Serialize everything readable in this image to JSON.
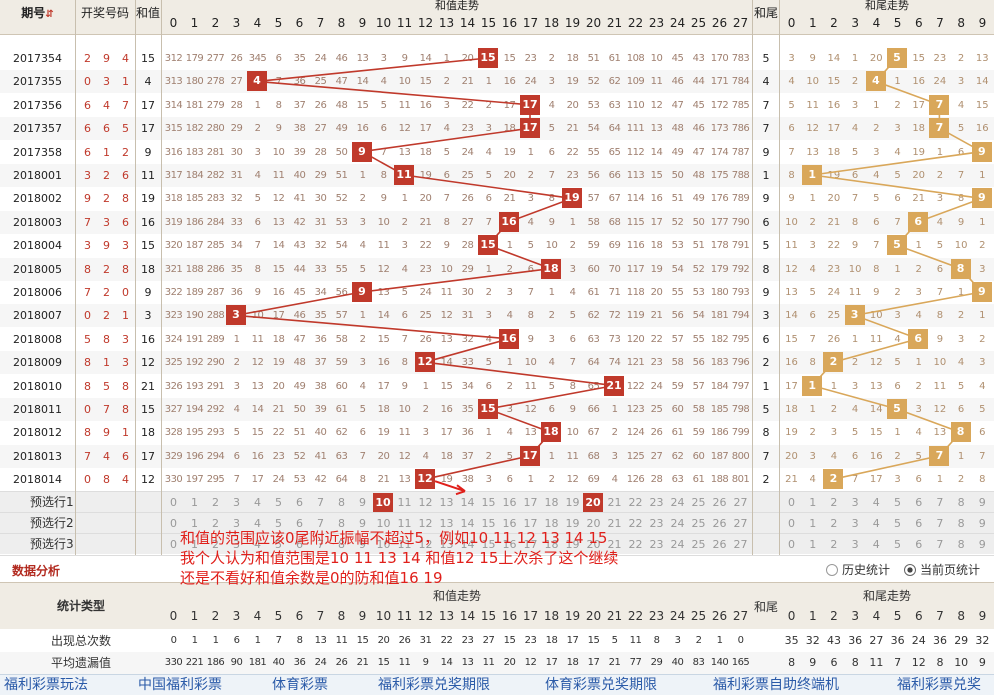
{
  "header": {
    "period": "期号",
    "winning": "开奖号码",
    "sum": "和值",
    "sum_trend": "和值走势",
    "tail": "和尾",
    "tail_trend": "和尾走势",
    "sort_icon": "sort-arrows-icon"
  },
  "sum_cols": [
    "0",
    "1",
    "2",
    "3",
    "4",
    "5",
    "6",
    "7",
    "8",
    "9",
    "10",
    "11",
    "12",
    "13",
    "14",
    "15",
    "16",
    "17",
    "18",
    "19",
    "20",
    "21",
    "22",
    "23",
    "24",
    "25",
    "26",
    "27"
  ],
  "tail_cols": [
    "0",
    "1",
    "2",
    "3",
    "4",
    "5",
    "6",
    "7",
    "8",
    "9"
  ],
  "rows": [
    {
      "period": "2017354",
      "digits": [
        "2",
        "9",
        "4"
      ],
      "sum": "15",
      "tail": "5",
      "g": [
        "312",
        "179",
        "277",
        "26",
        "345",
        "6",
        "35",
        "24",
        "46",
        "13",
        "3",
        "9",
        "14",
        "1",
        "20",
        "",
        "15",
        "23",
        "2",
        "18",
        "51",
        "61",
        "108",
        "10",
        "45",
        "43",
        "170",
        "783"
      ],
      "t": [
        "3",
        "9",
        "14",
        "1",
        "20",
        "",
        "15",
        "23",
        "2",
        "13"
      ]
    },
    {
      "period": "2017355",
      "digits": [
        "0",
        "3",
        "1"
      ],
      "sum": "4",
      "tail": "4",
      "g": [
        "313",
        "180",
        "278",
        "27",
        "",
        "7",
        "36",
        "25",
        "47",
        "14",
        "4",
        "10",
        "15",
        "2",
        "21",
        "1",
        "16",
        "24",
        "3",
        "19",
        "52",
        "62",
        "109",
        "11",
        "46",
        "44",
        "171",
        "784"
      ],
      "t": [
        "4",
        "10",
        "15",
        "2",
        "",
        "1",
        "16",
        "24",
        "3",
        "14"
      ]
    },
    {
      "period": "2017356",
      "digits": [
        "6",
        "4",
        "7"
      ],
      "sum": "17",
      "tail": "7",
      "g": [
        "314",
        "181",
        "279",
        "28",
        "1",
        "8",
        "37",
        "26",
        "48",
        "15",
        "5",
        "11",
        "16",
        "3",
        "22",
        "2",
        "17",
        "",
        "4",
        "20",
        "53",
        "63",
        "110",
        "12",
        "47",
        "45",
        "172",
        "785"
      ],
      "t": [
        "5",
        "11",
        "16",
        "3",
        "1",
        "2",
        "17",
        "",
        "4",
        "15"
      ]
    },
    {
      "period": "2017357",
      "digits": [
        "6",
        "6",
        "5"
      ],
      "sum": "17",
      "tail": "7",
      "g": [
        "315",
        "182",
        "280",
        "29",
        "2",
        "9",
        "38",
        "27",
        "49",
        "16",
        "6",
        "12",
        "17",
        "4",
        "23",
        "3",
        "18",
        "",
        "5",
        "21",
        "54",
        "64",
        "111",
        "13",
        "48",
        "46",
        "173",
        "786"
      ],
      "t": [
        "6",
        "12",
        "17",
        "4",
        "2",
        "3",
        "18",
        "",
        "5",
        "16"
      ]
    },
    {
      "period": "2017358",
      "digits": [
        "6",
        "1",
        "2"
      ],
      "sum": "9",
      "tail": "9",
      "g": [
        "316",
        "183",
        "281",
        "30",
        "3",
        "10",
        "39",
        "28",
        "50",
        "",
        "7",
        "13",
        "18",
        "5",
        "24",
        "4",
        "19",
        "1",
        "6",
        "22",
        "55",
        "65",
        "112",
        "14",
        "49",
        "47",
        "174",
        "787"
      ],
      "t": [
        "7",
        "13",
        "18",
        "5",
        "3",
        "4",
        "19",
        "1",
        "6",
        ""
      ]
    },
    {
      "period": "2018001",
      "digits": [
        "3",
        "2",
        "6"
      ],
      "sum": "11",
      "tail": "1",
      "g": [
        "317",
        "184",
        "282",
        "31",
        "4",
        "11",
        "40",
        "29",
        "51",
        "1",
        "8",
        "",
        "19",
        "6",
        "25",
        "5",
        "20",
        "2",
        "7",
        "23",
        "56",
        "66",
        "113",
        "15",
        "50",
        "48",
        "175",
        "788"
      ],
      "t": [
        "8",
        "",
        "19",
        "6",
        "4",
        "5",
        "20",
        "2",
        "7",
        "1"
      ]
    },
    {
      "period": "2018002",
      "digits": [
        "9",
        "2",
        "8"
      ],
      "sum": "19",
      "tail": "9",
      "g": [
        "318",
        "185",
        "283",
        "32",
        "5",
        "12",
        "41",
        "30",
        "52",
        "2",
        "9",
        "1",
        "20",
        "7",
        "26",
        "6",
        "21",
        "3",
        "8",
        "",
        "57",
        "67",
        "114",
        "16",
        "51",
        "49",
        "176",
        "789"
      ],
      "t": [
        "9",
        "1",
        "20",
        "7",
        "5",
        "6",
        "21",
        "3",
        "8",
        ""
      ]
    },
    {
      "period": "2018003",
      "digits": [
        "7",
        "3",
        "6"
      ],
      "sum": "16",
      "tail": "6",
      "g": [
        "319",
        "186",
        "284",
        "33",
        "6",
        "13",
        "42",
        "31",
        "53",
        "3",
        "10",
        "2",
        "21",
        "8",
        "27",
        "7",
        "",
        "4",
        "9",
        "1",
        "58",
        "68",
        "115",
        "17",
        "52",
        "50",
        "177",
        "790"
      ],
      "t": [
        "10",
        "2",
        "21",
        "8",
        "6",
        "7",
        "",
        "4",
        "9",
        "1"
      ]
    },
    {
      "period": "2018004",
      "digits": [
        "3",
        "9",
        "3"
      ],
      "sum": "15",
      "tail": "5",
      "g": [
        "320",
        "187",
        "285",
        "34",
        "7",
        "14",
        "43",
        "32",
        "54",
        "4",
        "11",
        "3",
        "22",
        "9",
        "28",
        "",
        "1",
        "5",
        "10",
        "2",
        "59",
        "69",
        "116",
        "18",
        "53",
        "51",
        "178",
        "791"
      ],
      "t": [
        "11",
        "3",
        "22",
        "9",
        "7",
        "",
        "1",
        "5",
        "10",
        "2"
      ]
    },
    {
      "period": "2018005",
      "digits": [
        "8",
        "2",
        "8"
      ],
      "sum": "18",
      "tail": "8",
      "g": [
        "321",
        "188",
        "286",
        "35",
        "8",
        "15",
        "44",
        "33",
        "55",
        "5",
        "12",
        "4",
        "23",
        "10",
        "29",
        "1",
        "2",
        "6",
        "",
        "3",
        "60",
        "70",
        "117",
        "19",
        "54",
        "52",
        "179",
        "792"
      ],
      "t": [
        "12",
        "4",
        "23",
        "10",
        "8",
        "1",
        "2",
        "6",
        "",
        "3"
      ]
    },
    {
      "period": "2018006",
      "digits": [
        "7",
        "2",
        "0"
      ],
      "sum": "9",
      "tail": "9",
      "g": [
        "322",
        "189",
        "287",
        "36",
        "9",
        "16",
        "45",
        "34",
        "56",
        "",
        "13",
        "5",
        "24",
        "11",
        "30",
        "2",
        "3",
        "7",
        "1",
        "4",
        "61",
        "71",
        "118",
        "20",
        "55",
        "53",
        "180",
        "793"
      ],
      "t": [
        "13",
        "5",
        "24",
        "11",
        "9",
        "2",
        "3",
        "7",
        "1",
        ""
      ]
    },
    {
      "period": "2018007",
      "digits": [
        "0",
        "2",
        "1"
      ],
      "sum": "3",
      "tail": "3",
      "g": [
        "323",
        "190",
        "288",
        "",
        "10",
        "17",
        "46",
        "35",
        "57",
        "1",
        "14",
        "6",
        "25",
        "12",
        "31",
        "3",
        "4",
        "8",
        "2",
        "5",
        "62",
        "72",
        "119",
        "21",
        "56",
        "54",
        "181",
        "794"
      ],
      "t": [
        "14",
        "6",
        "25",
        "",
        "10",
        "3",
        "4",
        "8",
        "2",
        "1"
      ]
    },
    {
      "period": "2018008",
      "digits": [
        "5",
        "8",
        "3"
      ],
      "sum": "16",
      "tail": "6",
      "g": [
        "324",
        "191",
        "289",
        "1",
        "11",
        "18",
        "47",
        "36",
        "58",
        "2",
        "15",
        "7",
        "26",
        "13",
        "32",
        "4",
        "",
        "9",
        "3",
        "6",
        "63",
        "73",
        "120",
        "22",
        "57",
        "55",
        "182",
        "795"
      ],
      "t": [
        "15",
        "7",
        "26",
        "1",
        "11",
        "4",
        "",
        "9",
        "3",
        "2"
      ]
    },
    {
      "period": "2018009",
      "digits": [
        "8",
        "1",
        "3"
      ],
      "sum": "12",
      "tail": "2",
      "g": [
        "325",
        "192",
        "290",
        "2",
        "12",
        "19",
        "48",
        "37",
        "59",
        "3",
        "16",
        "8",
        "",
        "14",
        "33",
        "5",
        "1",
        "10",
        "4",
        "7",
        "64",
        "74",
        "121",
        "23",
        "58",
        "56",
        "183",
        "796"
      ],
      "t": [
        "16",
        "8",
        "",
        "2",
        "12",
        "5",
        "1",
        "10",
        "4",
        "3"
      ]
    },
    {
      "period": "2018010",
      "digits": [
        "8",
        "5",
        "8"
      ],
      "sum": "21",
      "tail": "1",
      "g": [
        "326",
        "193",
        "291",
        "3",
        "13",
        "20",
        "49",
        "38",
        "60",
        "4",
        "17",
        "9",
        "1",
        "15",
        "34",
        "6",
        "2",
        "11",
        "5",
        "8",
        "65",
        "",
        "122",
        "24",
        "59",
        "57",
        "184",
        "797"
      ],
      "t": [
        "17",
        "",
        "1",
        "3",
        "13",
        "6",
        "2",
        "11",
        "5",
        "4"
      ]
    },
    {
      "period": "2018011",
      "digits": [
        "0",
        "7",
        "8"
      ],
      "sum": "15",
      "tail": "5",
      "g": [
        "327",
        "194",
        "292",
        "4",
        "14",
        "21",
        "50",
        "39",
        "61",
        "5",
        "18",
        "10",
        "2",
        "16",
        "35",
        "",
        "3",
        "12",
        "6",
        "9",
        "66",
        "1",
        "123",
        "25",
        "60",
        "58",
        "185",
        "798"
      ],
      "t": [
        "18",
        "1",
        "2",
        "4",
        "14",
        "",
        "3",
        "12",
        "6",
        "5"
      ]
    },
    {
      "period": "2018012",
      "digits": [
        "8",
        "9",
        "1"
      ],
      "sum": "18",
      "tail": "8",
      "g": [
        "328",
        "195",
        "293",
        "5",
        "15",
        "22",
        "51",
        "40",
        "62",
        "6",
        "19",
        "11",
        "3",
        "17",
        "36",
        "1",
        "4",
        "13",
        "",
        "10",
        "67",
        "2",
        "124",
        "26",
        "61",
        "59",
        "186",
        "799"
      ],
      "t": [
        "19",
        "2",
        "3",
        "5",
        "15",
        "1",
        "4",
        "13",
        "",
        "6"
      ]
    },
    {
      "period": "2018013",
      "digits": [
        "7",
        "4",
        "6"
      ],
      "sum": "17",
      "tail": "7",
      "g": [
        "329",
        "196",
        "294",
        "6",
        "16",
        "23",
        "52",
        "41",
        "63",
        "7",
        "20",
        "12",
        "4",
        "18",
        "37",
        "2",
        "5",
        "",
        "1",
        "11",
        "68",
        "3",
        "125",
        "27",
        "62",
        "60",
        "187",
        "800"
      ],
      "t": [
        "20",
        "3",
        "4",
        "6",
        "16",
        "2",
        "5",
        "",
        "1",
        "7"
      ]
    },
    {
      "period": "2018014",
      "digits": [
        "0",
        "8",
        "4"
      ],
      "sum": "12",
      "tail": "2",
      "g": [
        "330",
        "197",
        "295",
        "7",
        "17",
        "24",
        "53",
        "42",
        "64",
        "8",
        "21",
        "13",
        "",
        "19",
        "38",
        "3",
        "6",
        "1",
        "2",
        "12",
        "69",
        "4",
        "126",
        "28",
        "63",
        "61",
        "188",
        "801"
      ],
      "t": [
        "21",
        "4",
        "",
        "7",
        "17",
        "3",
        "6",
        "1",
        "2",
        "8"
      ]
    }
  ],
  "preselect": [
    {
      "label": "预选行1",
      "marks": [
        10,
        20
      ]
    },
    {
      "label": "预选行2",
      "marks": []
    },
    {
      "label": "预选行3",
      "marks": []
    }
  ],
  "note": {
    "line1": "和值的范围应该0尾附近振幅不超过5，例如10 11 12 13 14 15",
    "line2": "我个人认为和值范围是10 11 13 14 和值12 15上次杀了这个继续",
    "line3": "还是不看好和值余数是0的防和值16 19"
  },
  "stats": {
    "title": "数据分析",
    "radio_history": "历史统计",
    "radio_current": "当前页统计",
    "type_header": "统计类型",
    "sum_trend": "和值走势",
    "tail": "和尾",
    "tail_trend": "和尾走势",
    "row1_label": "出现总次数",
    "row1_sum": [
      "0",
      "1",
      "1",
      "6",
      "1",
      "7",
      "8",
      "13",
      "11",
      "15",
      "20",
      "26",
      "31",
      "22",
      "23",
      "27",
      "15",
      "23",
      "18",
      "17",
      "15",
      "5",
      "11",
      "8",
      "3",
      "2",
      "1",
      "0"
    ],
    "row1_tail": [
      "35",
      "32",
      "43",
      "36",
      "27",
      "36",
      "24",
      "36",
      "29",
      "32"
    ],
    "row2_label": "平均遗漏值",
    "row2_sum": [
      "330",
      "221",
      "186",
      "90",
      "181",
      "40",
      "36",
      "24",
      "26",
      "21",
      "15",
      "11",
      "9",
      "14",
      "13",
      "11",
      "20",
      "12",
      "17",
      "18",
      "17",
      "21",
      "77",
      "29",
      "40",
      "83",
      "140",
      "165"
    ],
    "row2_tail": [
      "8",
      "9",
      "6",
      "8",
      "11",
      "7",
      "12",
      "8",
      "10",
      "9"
    ]
  },
  "footer": [
    "福利彩票玩法",
    "中国福利彩票",
    "体育彩票",
    "福利彩票兑奖期限",
    "体育彩票兑奖期限",
    "福利彩票自助终端机",
    "福利彩票兑奖"
  ],
  "colors": {
    "accent": "#c0392b",
    "tail_accent": "#d9a75a",
    "link": "#2a5aa8"
  }
}
